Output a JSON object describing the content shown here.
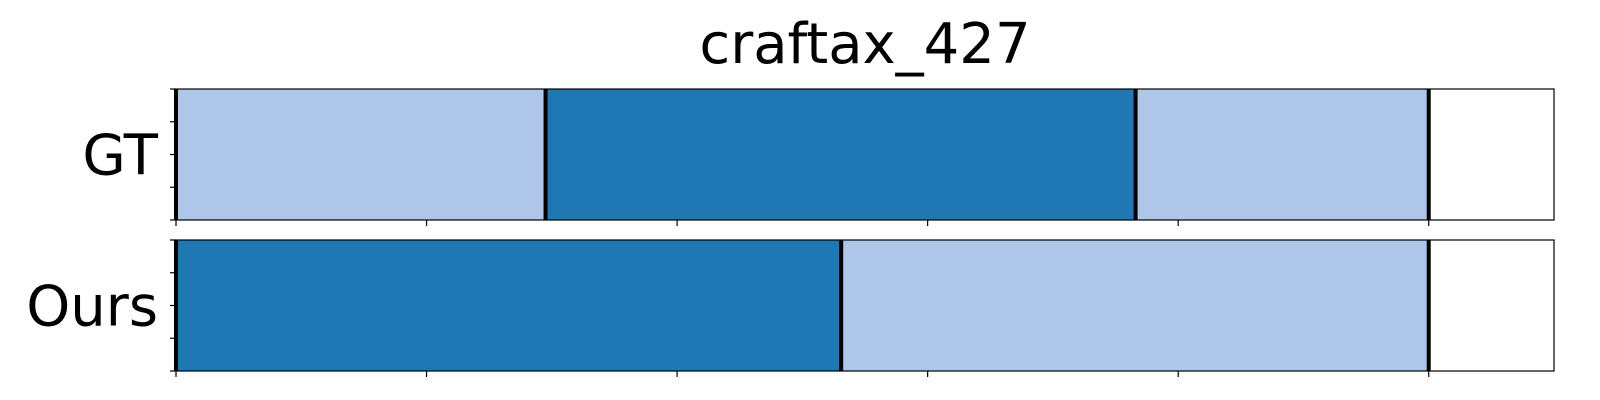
{
  "chart_data": {
    "type": "segmentation-timeline",
    "title": "craftax_427",
    "xlim": [
      0,
      1.1
    ],
    "x_ticks": [
      0,
      0.2,
      0.4,
      0.6,
      0.8,
      1.0
    ],
    "y_ticks_per_row": 5,
    "colors": {
      "light": "#aec7e8",
      "dark": "#1f77b4",
      "boundary": "#000000",
      "frame": "#000000"
    },
    "rows": [
      {
        "label": "GT",
        "segments": [
          {
            "start": 0.0,
            "end": 0.295,
            "color": "light"
          },
          {
            "start": 0.295,
            "end": 0.766,
            "color": "dark"
          },
          {
            "start": 0.766,
            "end": 1.0,
            "color": "light"
          }
        ],
        "boundaries": [
          0.0,
          0.295,
          0.766,
          1.0
        ]
      },
      {
        "label": "Ours",
        "segments": [
          {
            "start": 0.0,
            "end": 0.531,
            "color": "dark"
          },
          {
            "start": 0.531,
            "end": 1.0,
            "color": "light"
          }
        ],
        "boundaries": [
          0.0,
          0.531,
          1.0
        ]
      }
    ]
  }
}
